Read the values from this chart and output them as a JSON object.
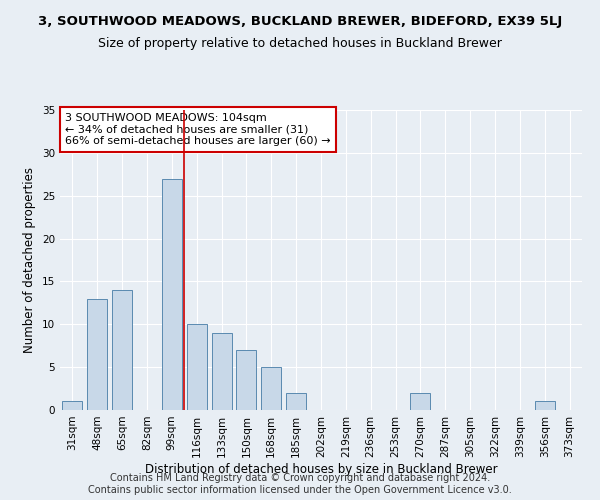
{
  "title": "3, SOUTHWOOD MEADOWS, BUCKLAND BREWER, BIDEFORD, EX39 5LJ",
  "subtitle": "Size of property relative to detached houses in Buckland Brewer",
  "xlabel": "Distribution of detached houses by size in Buckland Brewer",
  "ylabel": "Number of detached properties",
  "categories": [
    "31sqm",
    "48sqm",
    "65sqm",
    "82sqm",
    "99sqm",
    "116sqm",
    "133sqm",
    "150sqm",
    "168sqm",
    "185sqm",
    "202sqm",
    "219sqm",
    "236sqm",
    "253sqm",
    "270sqm",
    "287sqm",
    "305sqm",
    "322sqm",
    "339sqm",
    "356sqm",
    "373sqm"
  ],
  "values": [
    1,
    13,
    14,
    0,
    27,
    10,
    9,
    7,
    5,
    2,
    0,
    0,
    0,
    0,
    2,
    0,
    0,
    0,
    0,
    1,
    0
  ],
  "bar_color": "#c8d8e8",
  "bar_edge_color": "#5a8ab0",
  "red_line_x": 4.5,
  "ylim": [
    0,
    35
  ],
  "yticks": [
    0,
    5,
    10,
    15,
    20,
    25,
    30,
    35
  ],
  "annotation_line1": "3 SOUTHWOOD MEADOWS: 104sqm",
  "annotation_line2": "← 34% of detached houses are smaller (31)",
  "annotation_line3": "66% of semi-detached houses are larger (60) →",
  "annotation_box_color": "#ffffff",
  "annotation_box_edge_color": "#cc0000",
  "footer_line1": "Contains HM Land Registry data © Crown copyright and database right 2024.",
  "footer_line2": "Contains public sector information licensed under the Open Government Licence v3.0.",
  "bg_color": "#e8eef4",
  "plot_bg_color": "#e8eef4",
  "title_fontsize": 9.5,
  "subtitle_fontsize": 9,
  "axis_label_fontsize": 8.5,
  "tick_fontsize": 7.5,
  "footer_fontsize": 7,
  "annotation_fontsize": 8
}
